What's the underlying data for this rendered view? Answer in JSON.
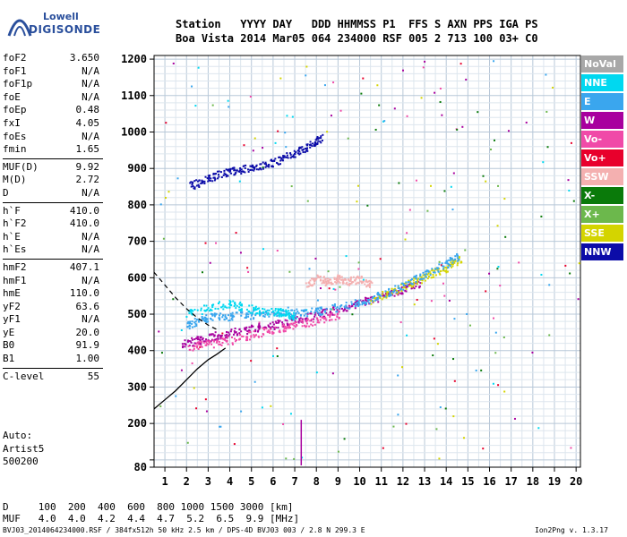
{
  "logo": {
    "line1": "Lowell",
    "line2": "DIGISONDE"
  },
  "header": {
    "line1": "Station   YYYY DAY   DDD HHMMSS P1  FFS S AXN PPS IGA PS",
    "line2": "Boa Vista 2014 Mar05 064 234000 RSF 005 2 713 100 03+ C0"
  },
  "params": {
    "group1": [
      {
        "name": "foF2",
        "value": "3.650"
      },
      {
        "name": "foF1",
        "value": "N/A"
      },
      {
        "name": "foF1p",
        "value": "N/A"
      },
      {
        "name": "foE",
        "value": "N/A"
      },
      {
        "name": "foEp",
        "value": "0.48"
      },
      {
        "name": "fxI",
        "value": "4.05"
      },
      {
        "name": "foEs",
        "value": "N/A"
      },
      {
        "name": "fmin",
        "value": "1.65"
      }
    ],
    "group2": [
      {
        "name": "MUF(D)",
        "value": "9.92"
      },
      {
        "name": "M(D)",
        "value": "2.72"
      },
      {
        "name": "D",
        "value": "N/A"
      }
    ],
    "group3": [
      {
        "name": "h`F",
        "value": "410.0"
      },
      {
        "name": "h`F2",
        "value": "410.0"
      },
      {
        "name": "h`E",
        "value": "N/A"
      },
      {
        "name": "h`Es",
        "value": "N/A"
      }
    ],
    "group4": [
      {
        "name": "hmF2",
        "value": "407.1"
      },
      {
        "name": "hmF1",
        "value": "N/A"
      },
      {
        "name": "hmE",
        "value": "110.0"
      },
      {
        "name": "yF2",
        "value": "63.6"
      },
      {
        "name": "yF1",
        "value": "N/A"
      },
      {
        "name": "yE",
        "value": "20.0"
      },
      {
        "name": "B0",
        "value": "91.9"
      },
      {
        "name": "B1",
        "value": "1.00"
      }
    ],
    "group5": [
      {
        "name": "C-level",
        "value": "55"
      }
    ]
  },
  "auto": {
    "line1": "Auto:",
    "line2": "Artist5",
    "line3": "500200"
  },
  "legend": [
    {
      "label": "NoVal",
      "color": "#a8a8a8"
    },
    {
      "label": "NNE",
      "color": "#00d8f0"
    },
    {
      "label": "E",
      "color": "#3aa6ee"
    },
    {
      "label": "W",
      "color": "#a8009e"
    },
    {
      "label": "Vo-",
      "color": "#f04aa8"
    },
    {
      "label": "Vo+",
      "color": "#e8002c"
    },
    {
      "label": "SSW",
      "color": "#f4b0b0"
    },
    {
      "label": "X-",
      "color": "#0a7a0a"
    },
    {
      "label": "X+",
      "color": "#6cb84c"
    },
    {
      "label": "SSE",
      "color": "#d4d400"
    },
    {
      "label": "NNW",
      "color": "#0c0ca8"
    }
  ],
  "bottom": {
    "line1": "D     100  200  400  600  800 1000 1500 3000 [km]",
    "line2": "MUF   4.0  4.0  4.2  4.4  4.7  5.2  6.5  9.9 [MHz]"
  },
  "footer": {
    "left": "BVJ03_2014064234000.RSF / 384fx512h 50 kHz 2.5 km / DPS-4D BVJ03 003 / 2.8 N 299.3 E",
    "right": "Ion2Png v. 1.3.17"
  },
  "chart_data": {
    "type": "scatter",
    "xlim": [
      0.5,
      20.2
    ],
    "ylim": [
      80,
      1210
    ],
    "xticks": [
      1,
      2,
      3,
      4,
      5,
      6,
      7,
      8,
      9,
      10,
      11,
      12,
      13,
      14,
      15,
      16,
      17,
      18,
      19,
      20
    ],
    "yticks": [
      80,
      100,
      200,
      300,
      400,
      500,
      600,
      700,
      800,
      900,
      1000,
      1100,
      1200
    ],
    "ytick_labels": [
      "80",
      "",
      "200",
      "300",
      "400",
      "500",
      "600",
      "700",
      "800",
      "900",
      "1000",
      "1100",
      "1200"
    ],
    "grid": true,
    "traces": [
      {
        "name": "O-trace F2",
        "color_key": "NNW",
        "x": [
          2.2,
          2.8,
          3.5,
          4.2,
          5.0,
          5.8,
          6.5,
          7.2,
          7.8,
          8.2
        ],
        "y": [
          855,
          870,
          885,
          895,
          905,
          915,
          930,
          950,
          970,
          985
        ]
      },
      {
        "name": "O-trace F2 low",
        "color_key": "W",
        "x": [
          1.8,
          2.5,
          3.2,
          4.0,
          5.0,
          6.0,
          7.0,
          8.0,
          9.0,
          10.0,
          11.0,
          12.0,
          12.8
        ],
        "y": [
          420,
          430,
          440,
          450,
          462,
          472,
          485,
          500,
          515,
          532,
          550,
          570,
          590
        ]
      },
      {
        "name": "X-trace",
        "color_key": "SSE",
        "x": [
          10.5,
          11.5,
          12.5,
          13.2,
          14.0,
          14.6
        ],
        "y": [
          540,
          565,
          590,
          610,
          630,
          650
        ]
      },
      {
        "name": "E spread",
        "color_key": "E",
        "x": [
          2.0,
          2.6,
          3.2,
          4.0,
          5.0,
          6.0,
          7.0,
          8.0,
          9.0,
          10.0,
          11.0,
          12.0,
          13.0,
          14.0,
          14.5
        ],
        "y": [
          470,
          485,
          495,
          495,
          500,
          505,
          505,
          510,
          520,
          535,
          555,
          580,
          610,
          640,
          660
        ]
      },
      {
        "name": "SSW spread",
        "color_key": "SSW",
        "x": [
          7.5,
          8.0,
          8.5,
          9.0,
          9.5,
          10.0,
          10.5
        ],
        "y": [
          580,
          600,
          590,
          600,
          590,
          600,
          580
        ]
      },
      {
        "name": "NNE",
        "color_key": "NNE",
        "x": [
          2.0,
          3.0,
          4.0,
          5.0,
          6.0,
          6.5,
          7.0
        ],
        "y": [
          500,
          520,
          530,
          515,
          510,
          505,
          495
        ]
      },
      {
        "name": "Vo-",
        "color_key": "Vo-",
        "x": [
          2.0,
          3.0,
          4.0,
          5.0,
          6.0,
          7.0,
          8.0,
          9.0
        ],
        "y": [
          410,
          420,
          430,
          445,
          460,
          470,
          485,
          500
        ]
      }
    ],
    "profile_curve": {
      "x": [
        0.5,
        1.0,
        1.5,
        2.0,
        2.5,
        3.0,
        3.4,
        3.8
      ],
      "y": [
        240,
        265,
        290,
        320,
        350,
        375,
        390,
        407
      ]
    },
    "dashed_curve": {
      "x": [
        0.5,
        1.0,
        1.5,
        2.0,
        2.5,
        3.0,
        3.5
      ],
      "y": [
        615,
        580,
        545,
        515,
        490,
        470,
        455
      ]
    }
  }
}
